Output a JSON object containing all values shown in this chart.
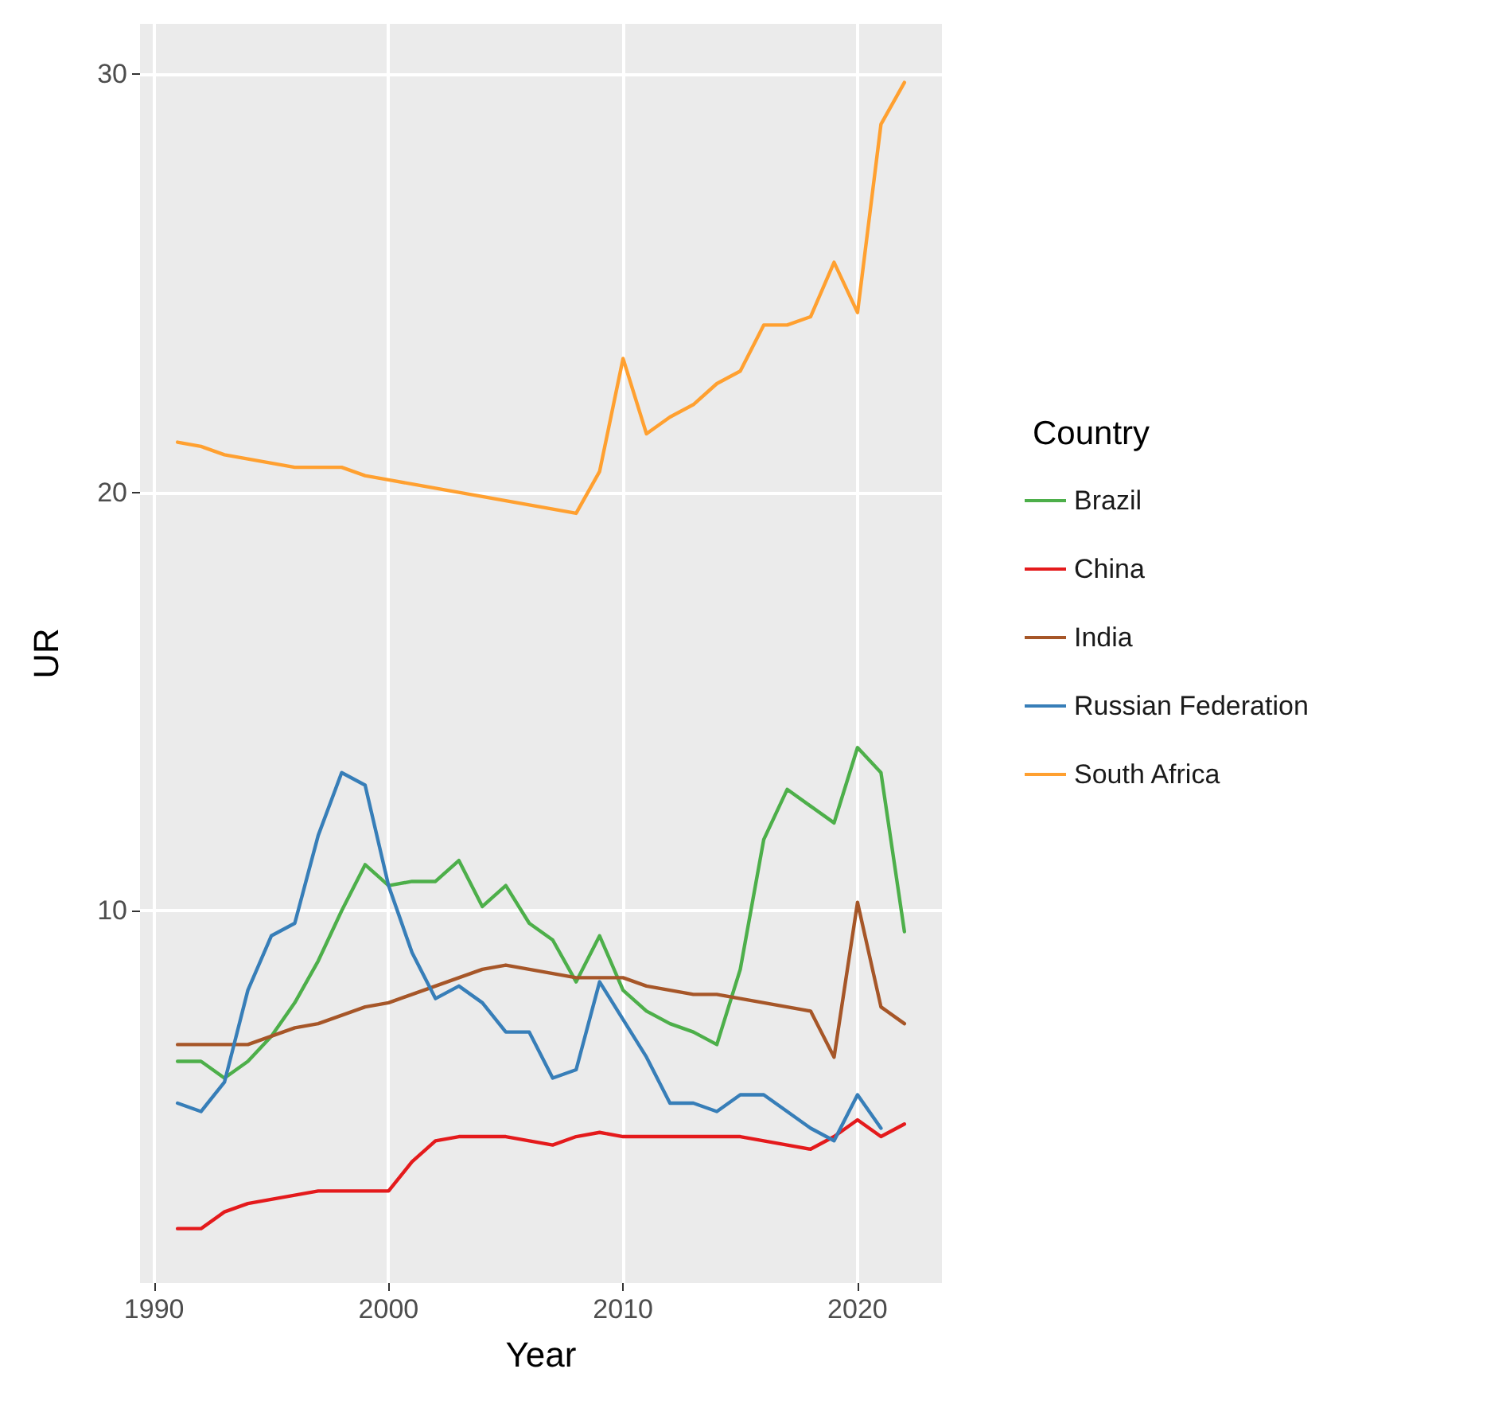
{
  "chart_data": {
    "type": "line",
    "xlabel": "Year",
    "ylabel": "UR",
    "legend_title": "Country",
    "legend": "right",
    "grid": true,
    "x": [
      1991,
      1992,
      1993,
      1994,
      1995,
      1996,
      1997,
      1998,
      1999,
      2000,
      2001,
      2002,
      2003,
      2004,
      2005,
      2006,
      2007,
      2008,
      2009,
      2010,
      2011,
      2012,
      2013,
      2014,
      2015,
      2016,
      2017,
      2018,
      2019,
      2020,
      2021,
      2022
    ],
    "xlim": [
      1989.4,
      2023.6
    ],
    "xticks": [
      1990,
      2000,
      2010,
      2020
    ],
    "ylim": [
      1.1,
      31.2
    ],
    "yticks": [
      10,
      20,
      30
    ],
    "series": [
      {
        "name": "Brazil",
        "color": "#4daf4a",
        "values": [
          6.4,
          6.4,
          6.0,
          6.4,
          7.0,
          7.8,
          8.8,
          10.0,
          11.1,
          10.6,
          10.7,
          10.7,
          11.2,
          10.1,
          10.6,
          9.7,
          9.3,
          8.3,
          9.4,
          8.1,
          7.6,
          7.3,
          7.1,
          6.8,
          8.6,
          11.7,
          12.9,
          12.5,
          12.1,
          13.9,
          13.3,
          9.5
        ]
      },
      {
        "name": "China",
        "color": "#e41a1c",
        "values": [
          2.4,
          2.4,
          2.8,
          3.0,
          3.1,
          3.2,
          3.3,
          3.3,
          3.3,
          3.3,
          4.0,
          4.5,
          4.6,
          4.6,
          4.6,
          4.5,
          4.4,
          4.6,
          4.7,
          4.6,
          4.6,
          4.6,
          4.6,
          4.6,
          4.6,
          4.5,
          4.4,
          4.3,
          4.6,
          5.0,
          4.6,
          4.9
        ]
      },
      {
        "name": "India",
        "color": "#a65628",
        "values": [
          6.8,
          6.8,
          6.8,
          6.8,
          7.0,
          7.2,
          7.3,
          7.5,
          7.7,
          7.8,
          8.0,
          8.2,
          8.4,
          8.6,
          8.7,
          8.6,
          8.5,
          8.4,
          8.4,
          8.4,
          8.2,
          8.1,
          8.0,
          8.0,
          7.9,
          7.8,
          7.7,
          7.6,
          6.5,
          10.2,
          7.7,
          7.3
        ]
      },
      {
        "name": "Russian Federation",
        "color": "#377eb8",
        "values": [
          5.4,
          5.2,
          5.9,
          8.1,
          9.4,
          9.7,
          11.8,
          13.3,
          13.0,
          10.6,
          9.0,
          7.9,
          8.2,
          7.8,
          7.1,
          7.1,
          6.0,
          6.2,
          8.3,
          7.4,
          6.5,
          5.4,
          5.4,
          5.2,
          5.6,
          5.6,
          5.2,
          4.8,
          4.5,
          5.6,
          4.8,
          null
        ]
      },
      {
        "name": "South Africa",
        "color": "#ffa030",
        "values": [
          21.2,
          21.1,
          20.9,
          20.8,
          20.7,
          20.6,
          20.6,
          20.6,
          20.4,
          20.3,
          20.2,
          20.1,
          20.0,
          19.9,
          19.8,
          19.7,
          19.6,
          19.5,
          20.5,
          23.2,
          21.4,
          21.8,
          22.1,
          22.6,
          22.9,
          24.0,
          24.0,
          24.2,
          25.5,
          24.3,
          28.8,
          29.8
        ]
      }
    ]
  }
}
